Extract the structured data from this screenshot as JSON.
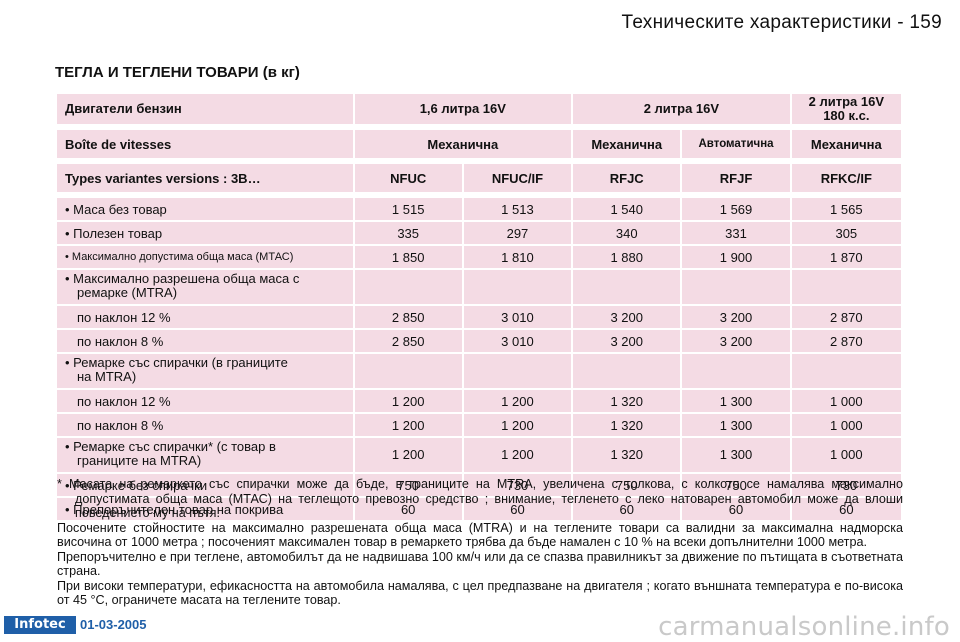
{
  "header": {
    "title": "Техническите характеристики - 159"
  },
  "section_title": "ТЕГЛА И ТЕГЛЕНИ ТОВАРИ (в кг)",
  "table": {
    "engine_row": {
      "label": "Двигатели бензин",
      "c1": "1,6 литра 16V",
      "c2": "2 литра 16V",
      "c3_line1": "2 литра 16V",
      "c3_line2": "180 к.с."
    },
    "gearbox_row": {
      "label": "Boîte de vitesses",
      "c1": "Механична",
      "c2": "Механична",
      "c3": "Автоматична",
      "c4": "Механична"
    },
    "types_row": {
      "label": "Types variantes versions : 3B…",
      "values": [
        "NFUC",
        "NFUC/IF",
        "RFJC",
        "RFJF",
        "RFKC/IF"
      ]
    },
    "rows": [
      {
        "l1": "• Маса без товар",
        "values": [
          "1 515",
          "1 513",
          "1 540",
          "1 569",
          "1 565"
        ]
      },
      {
        "l1": "• Полезен товар",
        "values": [
          "335",
          "297",
          "340",
          "331",
          "305"
        ]
      },
      {
        "l1": "• Максимално допустима обща маса (МТАС)",
        "values": [
          "1 850",
          "1 810",
          "1 880",
          "1 900",
          "1 870"
        ]
      },
      {
        "l1": "• Максимално разрешена обща маса с",
        "l2": "ремарке (МТRA)",
        "values": [
          "",
          "",
          "",
          "",
          ""
        ]
      },
      {
        "l1": "по наклон 12 %",
        "values": [
          "2 850",
          "3 010",
          "3 200",
          "3 200",
          "2 870"
        ]
      },
      {
        "l1": "по наклон 8 %",
        "values": [
          "2 850",
          "3 010",
          "3 200",
          "3 200",
          "2 870"
        ]
      },
      {
        "l1": "• Ремарке със спирачки (в границите",
        "l2": "на МТRA)",
        "values": [
          "",
          "",
          "",
          "",
          ""
        ]
      },
      {
        "l1": "по наклон 12 %",
        "values": [
          "1 200",
          "1 200",
          "1 320",
          "1 300",
          "1 000"
        ]
      },
      {
        "l1": "по наклон 8 %",
        "values": [
          "1 200",
          "1 200",
          "1 320",
          "1 300",
          "1 000"
        ]
      },
      {
        "l1": "• Ремарке със спирачки* (с товар в",
        "l2": "границите на МТRA)",
        "values": [
          "1 200",
          "1 200",
          "1 320",
          "1 300",
          "1 000"
        ]
      },
      {
        "l1": "• Ремарке без спирачки",
        "values": [
          "750",
          "730",
          "750",
          "750",
          "730"
        ]
      },
      {
        "l1": "• Препоръчителен товар на покрива",
        "values": [
          "60",
          "60",
          "60",
          "60",
          "60"
        ]
      }
    ]
  },
  "notes": {
    "footnote": "*  Масата на ремаркето със спирачки може да бъде, в границите на МТRA, увеличена с толкова, с колкото се намалява максимално допустимата обща маса (МТАС) на теглещото превозно средство ; внимание, тегленето с леко натоварен автомобил може да влоши поведението му на пътя.",
    "p1": "Посочените стойностите на максимално разрешената обща маса (МТRA) и на теглените товари са валидни за максимална надморска височина от 1000 метра ; посоченият максимален товар в ремаркето трябва да бъде намален с 10 % на всеки допълнителни 1000 метра.",
    "p2": "Препоръчително е при теглене, автомобилът да не надвишава 100 км/ч или да се спазва правилникът за движение по пътищата в съответната страна.",
    "p3": "При високи температури, ефикасността на автомобила намалява, с цел предпазване на двигателя ; когато външната температура е по-висока от 45 °С, ограничете масата на теглените товар."
  },
  "footer": {
    "logo": "Infotec",
    "date": "01-03-2005",
    "watermark": "carmanualsonline.info"
  }
}
